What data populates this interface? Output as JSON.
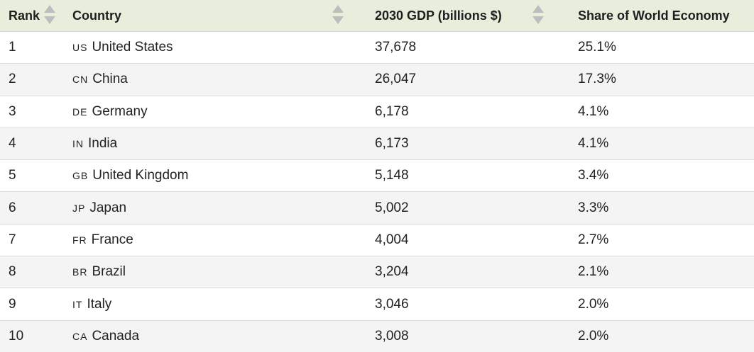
{
  "table": {
    "headers": {
      "rank": "Rank",
      "country": "Country",
      "gdp": "2030 GDP (billions $)",
      "share": "Share of World Economy"
    },
    "rows": [
      {
        "rank": "1",
        "code": "US",
        "country": "United States",
        "gdp": "37,678",
        "share": "25.1%"
      },
      {
        "rank": "2",
        "code": "CN",
        "country": "China",
        "gdp": "26,047",
        "share": "17.3%"
      },
      {
        "rank": "3",
        "code": "DE",
        "country": "Germany",
        "gdp": "6,178",
        "share": "4.1%"
      },
      {
        "rank": "4",
        "code": "IN",
        "country": "India",
        "gdp": "6,173",
        "share": "4.1%"
      },
      {
        "rank": "5",
        "code": "GB",
        "country": "United Kingdom",
        "gdp": "5,148",
        "share": "3.4%"
      },
      {
        "rank": "6",
        "code": "JP",
        "country": "Japan",
        "gdp": "5,002",
        "share": "3.3%"
      },
      {
        "rank": "7",
        "code": "FR",
        "country": "France",
        "gdp": "4,004",
        "share": "2.7%"
      },
      {
        "rank": "8",
        "code": "BR",
        "country": "Brazil",
        "gdp": "3,204",
        "share": "2.1%"
      },
      {
        "rank": "9",
        "code": "IT",
        "country": "Italy",
        "gdp": "3,046",
        "share": "2.0%"
      },
      {
        "rank": "10",
        "code": "CA",
        "country": "Canada",
        "gdp": "3,008",
        "share": "2.0%"
      }
    ]
  },
  "colors": {
    "header_bg": "#e7efdc",
    "row_alt_bg": "#f4f4f4",
    "sort_arrow": "#bdbdbd"
  },
  "icons": {
    "sort": "sort-arrows-icon"
  }
}
